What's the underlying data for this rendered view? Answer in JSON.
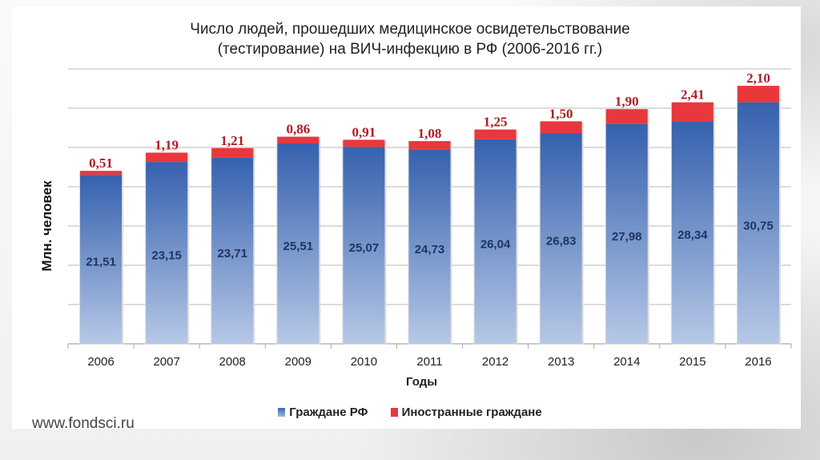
{
  "chart_data": {
    "type": "bar",
    "stacked": true,
    "title": "Число людей, прошедших медицинское освидетельствование (тестирование) на ВИЧ-инфекцию в РФ (2006-2016 гг.)",
    "title_lines": [
      "Число людей, прошедших медицинское освидетельствование",
      "(тестирование) на ВИЧ-инфекцию в РФ (2006-2016 гг.)"
    ],
    "xlabel": "Годы",
    "ylabel": "Млн. человек",
    "ylim": [
      0,
      35
    ],
    "grid": true,
    "legend_position": "bottom",
    "categories": [
      "2006",
      "2007",
      "2008",
      "2009",
      "2010",
      "2011",
      "2012",
      "2013",
      "2014",
      "2015",
      "2016"
    ],
    "series": [
      {
        "name": "Граждане РФ",
        "color": "#3a64b0",
        "values": [
          21.51,
          23.15,
          23.71,
          25.51,
          25.07,
          24.73,
          26.04,
          26.83,
          27.98,
          28.34,
          30.75
        ],
        "labels": [
          "21,51",
          "23,15",
          "23,71",
          "25,51",
          "25,07",
          "24,73",
          "26,04",
          "26,83",
          "27,98",
          "28,34",
          "30,75"
        ]
      },
      {
        "name": "Иностранные граждане",
        "color": "#e8383d",
        "values": [
          0.51,
          1.19,
          1.21,
          0.86,
          0.91,
          1.08,
          1.25,
          1.5,
          1.9,
          2.41,
          2.1
        ],
        "labels": [
          "0,51",
          "1,19",
          "1,21",
          "0,86",
          "0,91",
          "1,08",
          "1,25",
          "1,50",
          "1,90",
          "2,41",
          "2,10"
        ]
      }
    ]
  },
  "footer": {
    "site": "www.fondsci.ru"
  }
}
